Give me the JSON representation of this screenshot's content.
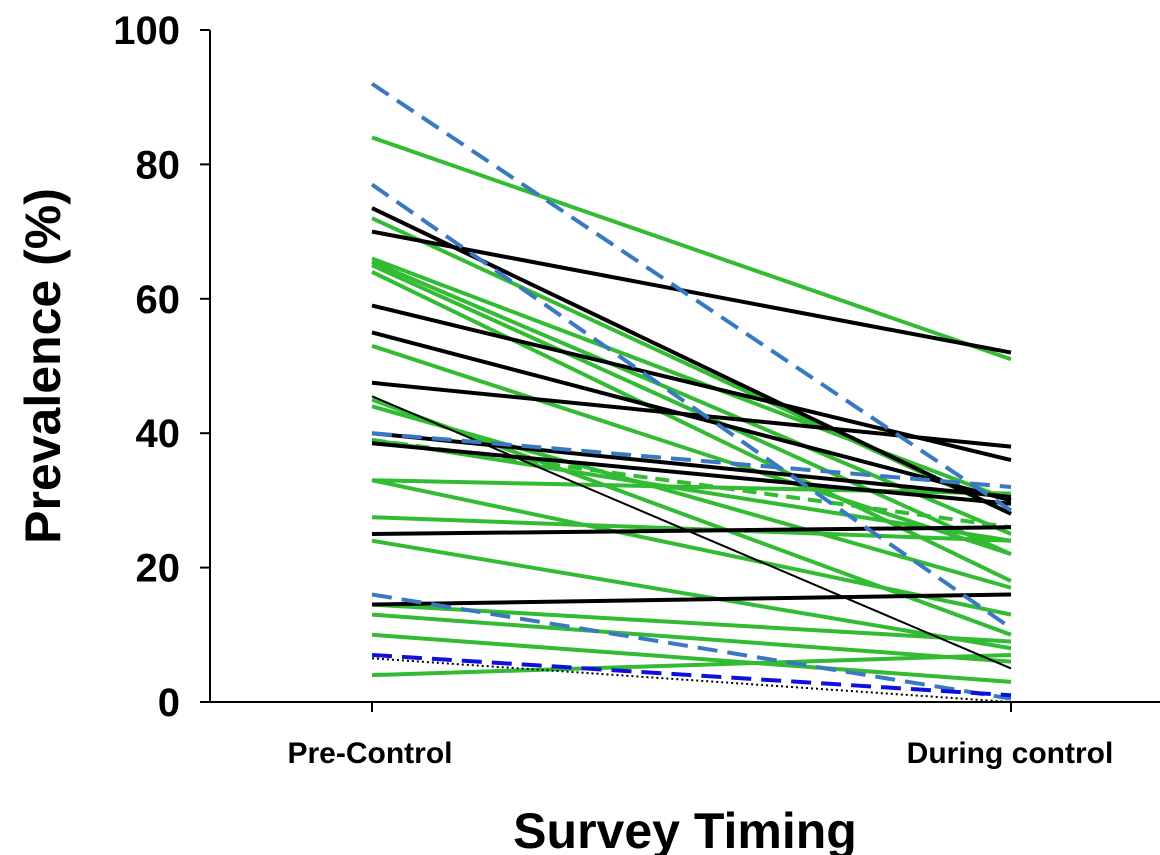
{
  "chart_data": {
    "type": "line",
    "title": "",
    "xlabel": "Survey Timing",
    "ylabel": "Prevalence (%)",
    "categories": [
      "Pre-Control",
      "During control"
    ],
    "y_ticks": [
      "0",
      "20",
      "40",
      "60",
      "80",
      "100"
    ],
    "ylim": [
      0,
      100
    ],
    "grid": false,
    "legend": "none",
    "colors": {
      "green": "#33bb33",
      "black": "#000000",
      "steel_blue": "#3a78c2",
      "blue": "#1010dd"
    },
    "series": [
      {
        "color": "green",
        "style": "solid",
        "values": [
          84,
          51
        ]
      },
      {
        "color": "green",
        "style": "solid",
        "values": [
          72,
          28
        ]
      },
      {
        "color": "green",
        "style": "solid",
        "values": [
          66,
          30
        ]
      },
      {
        "color": "green",
        "style": "solid",
        "values": [
          65.5,
          25
        ]
      },
      {
        "color": "green",
        "style": "solid",
        "values": [
          65,
          22
        ]
      },
      {
        "color": "green",
        "style": "solid",
        "values": [
          64,
          18
        ]
      },
      {
        "color": "green",
        "style": "solid",
        "values": [
          53,
          22
        ]
      },
      {
        "color": "green",
        "style": "solid",
        "values": [
          45,
          10
        ]
      },
      {
        "color": "green",
        "style": "solid",
        "values": [
          44,
          17
        ]
      },
      {
        "color": "green",
        "style": "solid",
        "values": [
          39,
          24
        ]
      },
      {
        "color": "green",
        "style": "dashed",
        "values": [
          39,
          26
        ]
      },
      {
        "color": "green",
        "style": "solid",
        "values": [
          33,
          31
        ]
      },
      {
        "color": "green",
        "style": "solid",
        "values": [
          33,
          13
        ]
      },
      {
        "color": "green",
        "style": "solid",
        "values": [
          27.5,
          24
        ]
      },
      {
        "color": "green",
        "style": "solid",
        "values": [
          24,
          8
        ]
      },
      {
        "color": "green",
        "style": "solid",
        "values": [
          14.5,
          9
        ]
      },
      {
        "color": "green",
        "style": "solid",
        "values": [
          13,
          6
        ]
      },
      {
        "color": "green",
        "style": "solid",
        "values": [
          10,
          3
        ]
      },
      {
        "color": "green",
        "style": "solid",
        "values": [
          4,
          7
        ]
      },
      {
        "color": "black",
        "style": "solid",
        "values": [
          73.5,
          28
        ]
      },
      {
        "color": "black",
        "style": "solid",
        "values": [
          70,
          52
        ]
      },
      {
        "color": "black",
        "style": "solid",
        "values": [
          59,
          36
        ]
      },
      {
        "color": "black",
        "style": "solid",
        "values": [
          55,
          30
        ]
      },
      {
        "color": "black",
        "style": "solid",
        "values": [
          47.5,
          38
        ]
      },
      {
        "color": "black",
        "style": "solid",
        "values": [
          45.5,
          5
        ]
      },
      {
        "color": "black",
        "style": "solid",
        "values": [
          40,
          30.5
        ]
      },
      {
        "color": "black",
        "style": "solid",
        "values": [
          38.5,
          29.5
        ]
      },
      {
        "color": "black",
        "style": "solid",
        "values": [
          25,
          26
        ]
      },
      {
        "color": "black",
        "style": "solid",
        "values": [
          14.5,
          16
        ]
      },
      {
        "color": "steel_blue",
        "style": "dashed",
        "values": [
          92,
          28.5
        ]
      },
      {
        "color": "steel_blue",
        "style": "dashed",
        "values": [
          77,
          11
        ]
      },
      {
        "color": "steel_blue",
        "style": "dashed",
        "values": [
          40,
          32
        ]
      },
      {
        "color": "steel_blue",
        "style": "dashed",
        "values": [
          16,
          0.5
        ]
      },
      {
        "color": "blue",
        "style": "dashed",
        "values": [
          7,
          1
        ]
      },
      {
        "color": "black",
        "style": "dotted",
        "values": [
          6.5,
          0
        ]
      }
    ]
  }
}
